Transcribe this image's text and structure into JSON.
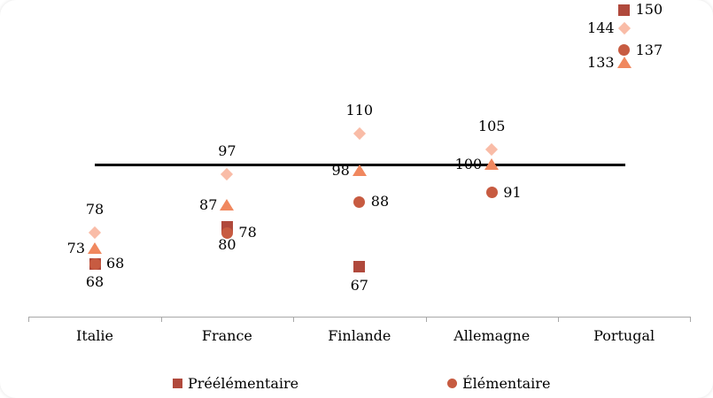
{
  "chart_data": {
    "type": "scatter",
    "title": "",
    "xlabel": "",
    "ylabel": "",
    "categories": [
      "Italie",
      "France",
      "Finlande",
      "Allemagne",
      "Portugal"
    ],
    "reference_line": {
      "value": 100,
      "color": "#000000"
    },
    "ylim": [
      60,
      155
    ],
    "grid": false,
    "legend_position": "bottom",
    "axis_color": "#a8a8a8",
    "series": [
      {
        "id": "preelementaire",
        "legend_label": "Préélémentaire",
        "marker": "square",
        "color": "#b0493c",
        "in_legend": true,
        "points": [
          {
            "category": "Italie",
            "value": 68,
            "label_pos": "below"
          },
          {
            "category": "France",
            "value": 80,
            "label_pos": "below"
          },
          {
            "category": "Finlande",
            "value": 67,
            "label_pos": "below"
          },
          {
            "category": "Portugal",
            "value": 150,
            "label_pos": "right"
          }
        ]
      },
      {
        "id": "elementaire",
        "legend_label": "Élémentaire",
        "marker": "circle",
        "color": "#c75b41",
        "in_legend": true,
        "points": [
          {
            "category": "Italie",
            "value": 68,
            "label_pos": "right"
          },
          {
            "category": "France",
            "value": 78,
            "label_pos": "right"
          },
          {
            "category": "Finlande",
            "value": 88,
            "label_pos": "right"
          },
          {
            "category": "Allemagne",
            "value": 91,
            "label_pos": "right"
          },
          {
            "category": "Portugal",
            "value": 137,
            "label_pos": "right"
          }
        ]
      },
      {
        "id": "triangle-series",
        "legend_label": "",
        "marker": "triangle",
        "color": "#f0885f",
        "in_legend": false,
        "points": [
          {
            "category": "Italie",
            "value": 73,
            "label_pos": "left"
          },
          {
            "category": "France",
            "value": 87,
            "label_pos": "left"
          },
          {
            "category": "Finlande",
            "value": 98,
            "label_pos": "left"
          },
          {
            "category": "Allemagne",
            "value": 100,
            "label_pos": "left"
          },
          {
            "category": "Portugal",
            "value": 133,
            "label_pos": "left"
          }
        ]
      },
      {
        "id": "diamond-series",
        "legend_label": "",
        "marker": "diamond",
        "color": "#f9bca7",
        "in_legend": false,
        "points": [
          {
            "category": "Italie",
            "value": 78,
            "label_pos": "above"
          },
          {
            "category": "France",
            "value": 97,
            "label_pos": "above"
          },
          {
            "category": "Finlande",
            "value": 110,
            "label_pos": "above"
          },
          {
            "category": "Allemagne",
            "value": 105,
            "label_pos": "above"
          },
          {
            "category": "Portugal",
            "value": 144,
            "label_pos": "left"
          }
        ]
      }
    ]
  },
  "legend": {
    "items": [
      {
        "label": "Préélémentaire",
        "marker": "square",
        "color": "#b0493c"
      },
      {
        "label": "Élémentaire",
        "marker": "circle",
        "color": "#c75b41"
      }
    ]
  }
}
